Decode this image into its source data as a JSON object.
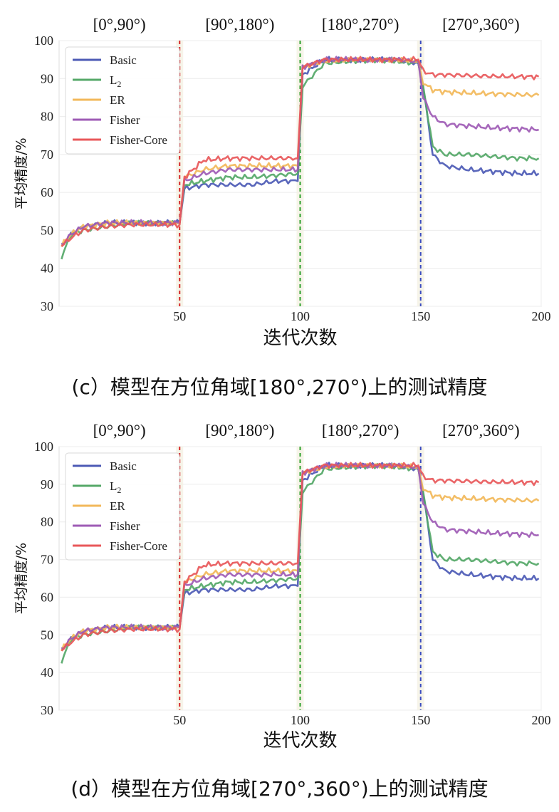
{
  "chart_data": [
    {
      "type": "line",
      "caption": "(c）模型在方位角域[180°,270°)上的测试精度",
      "xlabel": "迭代次数",
      "ylabel": "平均精度/%",
      "xlim": [
        0,
        200
      ],
      "ylim": [
        30,
        100
      ],
      "xticks": [
        50,
        100,
        150,
        200
      ],
      "yticks": [
        30,
        40,
        50,
        60,
        70,
        80,
        90,
        100
      ],
      "grid": true,
      "legend_position": "upper-left",
      "period_labels": [
        "[0°,90°)",
        "[90°,180°)",
        "[180°,270°)",
        "[270°,360°)"
      ],
      "task_boundaries": [
        {
          "x": 50,
          "color": "#d62728"
        },
        {
          "x": 100,
          "color": "#2ca02c"
        },
        {
          "x": 150,
          "color": "#3b4cc0"
        }
      ],
      "series": [
        {
          "name": "Basic",
          "color": "#4c5ab5",
          "x": [
            1,
            5,
            10,
            20,
            30,
            40,
            50,
            52,
            60,
            70,
            80,
            90,
            99,
            101,
            110,
            120,
            130,
            140,
            149,
            151,
            155,
            160,
            170,
            180,
            190,
            199
          ],
          "y": [
            46,
            49,
            51,
            52,
            52,
            52,
            52,
            61,
            62,
            62,
            62,
            63,
            63,
            91,
            95,
            95,
            95,
            95,
            94,
            88,
            70,
            67,
            66,
            65.5,
            65,
            65
          ]
        },
        {
          "name": "L2",
          "color": "#55a868",
          "x": [
            1,
            5,
            10,
            20,
            30,
            40,
            50,
            52,
            60,
            70,
            80,
            90,
            99,
            101,
            110,
            120,
            130,
            140,
            149,
            151,
            155,
            160,
            170,
            180,
            190,
            199
          ],
          "y": [
            43,
            49,
            50,
            51,
            52,
            52,
            52,
            62,
            63,
            64,
            64,
            64.5,
            65,
            88,
            94,
            94.5,
            95,
            94.5,
            94,
            88,
            72,
            70,
            70,
            69.5,
            69,
            69
          ]
        },
        {
          "name": "ER",
          "color": "#f2b85a",
          "x": [
            1,
            5,
            10,
            20,
            30,
            40,
            50,
            52,
            60,
            70,
            80,
            90,
            99,
            101,
            110,
            120,
            130,
            140,
            149,
            151,
            155,
            160,
            170,
            180,
            190,
            199
          ],
          "y": [
            46,
            49,
            51,
            52,
            52,
            52,
            52,
            64,
            66,
            67,
            67,
            67,
            67,
            93,
            94.5,
            95,
            95,
            95,
            94.5,
            89,
            87,
            86.5,
            86.2,
            86,
            85.8,
            85.6
          ]
        },
        {
          "name": "Fisher",
          "color": "#9e5bb5",
          "x": [
            1,
            5,
            10,
            20,
            30,
            40,
            50,
            52,
            60,
            70,
            80,
            90,
            99,
            101,
            110,
            120,
            130,
            140,
            149,
            151,
            155,
            160,
            170,
            180,
            190,
            199
          ],
          "y": [
            46,
            49,
            51,
            52,
            52,
            52,
            52,
            63,
            65,
            66,
            66,
            66,
            66,
            93,
            95,
            95,
            95,
            95,
            94.5,
            85,
            80,
            78,
            77.5,
            77,
            76.8,
            76.5
          ]
        },
        {
          "name": "Fisher-Core",
          "color": "#e8585a",
          "x": [
            1,
            5,
            10,
            20,
            30,
            40,
            50,
            52,
            60,
            70,
            80,
            90,
            99,
            101,
            110,
            120,
            130,
            140,
            149,
            151,
            155,
            160,
            170,
            180,
            190,
            199
          ],
          "y": [
            46,
            48,
            50,
            51,
            51.5,
            51.5,
            51.5,
            64,
            68.5,
            69,
            69,
            69,
            69,
            93,
            95,
            95,
            95,
            95,
            95,
            92,
            91,
            91,
            90.8,
            90.6,
            90.5,
            90.5
          ]
        }
      ]
    },
    {
      "type": "line",
      "caption": "(d）模型在方位角域[270°,360°)上的测试精度",
      "xlabel": "迭代次数",
      "ylabel": "平均精度/%",
      "xlim": [
        0,
        200
      ],
      "ylim": [
        30,
        100
      ],
      "xticks": [
        50,
        100,
        150,
        200
      ],
      "yticks": [
        30,
        40,
        50,
        60,
        70,
        80,
        90,
        100
      ],
      "grid": true,
      "legend_position": "upper-left",
      "period_labels": [
        "[0°,90°)",
        "[90°,180°)",
        "[180°,270°)",
        "[270°,360°)"
      ],
      "task_boundaries": [
        {
          "x": 50,
          "color": "#d62728"
        },
        {
          "x": 100,
          "color": "#2ca02c"
        },
        {
          "x": 150,
          "color": "#3b4cc0"
        }
      ],
      "series": [
        {
          "name": "Basic",
          "color": "#4c5ab5",
          "x": [
            1,
            5,
            10,
            20,
            30,
            40,
            50,
            52,
            60,
            70,
            80,
            90,
            99,
            101,
            110,
            120,
            130,
            140,
            149,
            151,
            155,
            160,
            170,
            180,
            190,
            199
          ],
          "y": [
            46,
            49,
            51,
            52,
            52,
            52,
            52,
            61,
            62,
            62,
            62,
            63,
            63,
            91,
            95,
            95,
            95,
            95,
            94,
            88,
            70,
            67,
            66,
            65.5,
            65,
            65
          ]
        },
        {
          "name": "L2",
          "color": "#55a868",
          "x": [
            1,
            5,
            10,
            20,
            30,
            40,
            50,
            52,
            60,
            70,
            80,
            90,
            99,
            101,
            110,
            120,
            130,
            140,
            149,
            151,
            155,
            160,
            170,
            180,
            190,
            199
          ],
          "y": [
            43,
            49,
            50,
            51,
            52,
            52,
            52,
            62,
            63,
            64,
            64,
            64.5,
            65,
            88,
            94,
            94.5,
            95,
            94.5,
            94,
            88,
            72,
            70,
            70,
            69.5,
            69,
            69
          ]
        },
        {
          "name": "ER",
          "color": "#f2b85a",
          "x": [
            1,
            5,
            10,
            20,
            30,
            40,
            50,
            52,
            60,
            70,
            80,
            90,
            99,
            101,
            110,
            120,
            130,
            140,
            149,
            151,
            155,
            160,
            170,
            180,
            190,
            199
          ],
          "y": [
            46,
            49,
            51,
            52,
            52,
            52,
            52,
            64,
            66,
            67,
            67,
            67,
            67,
            93,
            94.5,
            95,
            95,
            95,
            94.5,
            89,
            87,
            86.5,
            86.2,
            86,
            85.8,
            85.6
          ]
        },
        {
          "name": "Fisher",
          "color": "#9e5bb5",
          "x": [
            1,
            5,
            10,
            20,
            30,
            40,
            50,
            52,
            60,
            70,
            80,
            90,
            99,
            101,
            110,
            120,
            130,
            140,
            149,
            151,
            155,
            160,
            170,
            180,
            190,
            199
          ],
          "y": [
            46,
            49,
            51,
            52,
            52,
            52,
            52,
            63,
            65,
            66,
            66,
            66,
            66,
            93,
            95,
            95,
            95,
            95,
            94.5,
            85,
            80,
            78,
            77.5,
            77,
            76.8,
            76.5
          ]
        },
        {
          "name": "Fisher-Core",
          "color": "#e8585a",
          "x": [
            1,
            5,
            10,
            20,
            30,
            40,
            50,
            52,
            60,
            70,
            80,
            90,
            99,
            101,
            110,
            120,
            130,
            140,
            149,
            151,
            155,
            160,
            170,
            180,
            190,
            199
          ],
          "y": [
            46,
            48,
            50,
            51,
            51.5,
            51.5,
            51.5,
            64,
            68.5,
            69,
            69,
            69,
            69,
            93,
            95,
            95,
            95,
            95,
            95,
            92,
            91,
            91,
            90.8,
            90.6,
            90.5,
            90.5
          ]
        }
      ]
    }
  ]
}
